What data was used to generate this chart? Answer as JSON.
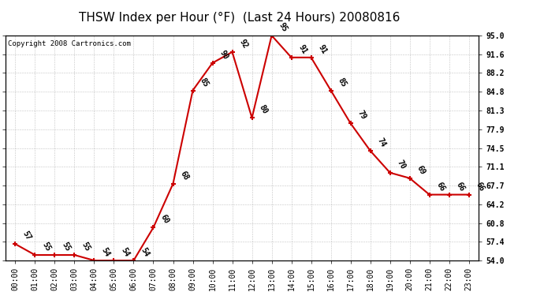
{
  "title": "THSW Index per Hour (°F)  (Last 24 Hours) 20080816",
  "copyright": "Copyright 2008 Cartronics.com",
  "hours": [
    "00:00",
    "01:00",
    "02:00",
    "03:00",
    "04:00",
    "05:00",
    "06:00",
    "07:00",
    "08:00",
    "09:00",
    "10:00",
    "11:00",
    "12:00",
    "13:00",
    "14:00",
    "15:00",
    "16:00",
    "17:00",
    "18:00",
    "19:00",
    "20:00",
    "21:00",
    "22:00",
    "23:00"
  ],
  "values": [
    57,
    55,
    55,
    55,
    54,
    54,
    54,
    60,
    68,
    85,
    90,
    92,
    80,
    95,
    91,
    91,
    85,
    79,
    74,
    70,
    69,
    66,
    66,
    66
  ],
  "ylim": [
    54.0,
    95.0
  ],
  "yticks": [
    54.0,
    57.4,
    60.8,
    64.2,
    67.7,
    71.1,
    74.5,
    77.9,
    81.3,
    84.8,
    88.2,
    91.6,
    95.0
  ],
  "ytick_labels": [
    "54.0",
    "57.4",
    "60.8",
    "64.2",
    "67.7",
    "71.1",
    "74.5",
    "77.9",
    "81.3",
    "84.8",
    "88.2",
    "91.6",
    "95.0"
  ],
  "line_color": "#cc0000",
  "bg_color": "#ffffff",
  "grid_color": "#aaaaaa",
  "title_fontsize": 11,
  "tick_fontsize": 7,
  "label_fontsize": 7,
  "copyright_fontsize": 6.5
}
